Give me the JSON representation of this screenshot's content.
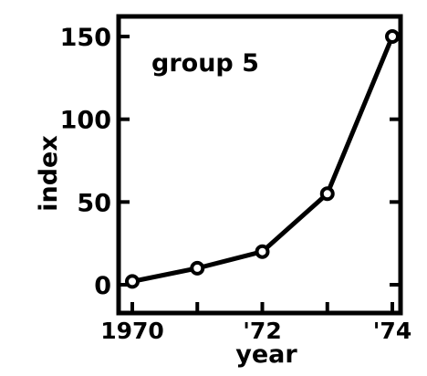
{
  "chart_data": {
    "type": "line",
    "title": "",
    "annotation": "group 5",
    "xlabel": "year",
    "ylabel": "index",
    "x": [
      1970,
      1971,
      1972,
      1973,
      1974
    ],
    "series": [
      {
        "values": [
          2,
          10,
          20,
          55,
          150
        ]
      }
    ],
    "xlim": [
      1970,
      1974
    ],
    "ylim": [
      -10,
      160
    ],
    "x_ticks": [
      {
        "value": 1970,
        "label": "1970"
      },
      {
        "value": 1972,
        "label": "'72"
      },
      {
        "value": 1974,
        "label": "'74"
      }
    ],
    "y_ticks": [
      {
        "value": 0,
        "label": "0"
      },
      {
        "value": 50,
        "label": "50"
      },
      {
        "value": 100,
        "label": "100"
      },
      {
        "value": 150,
        "label": "150"
      }
    ],
    "grid": false,
    "legend": "none",
    "colors": {
      "line": "#000000",
      "marker_fill": "#ffffff",
      "background": "#ffffff"
    }
  }
}
